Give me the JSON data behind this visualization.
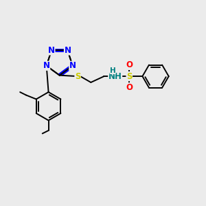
{
  "background_color": "#ebebeb",
  "figure_size": [
    3.0,
    3.0
  ],
  "dpi": 100,
  "bond_color": "#000000",
  "N_color": "#0000ff",
  "S_color": "#cccc00",
  "O_color": "#ff0000",
  "NH_color": "#008080",
  "bond_lw": 1.4,
  "font_size": 8.5,
  "xlim": [
    0,
    10
  ],
  "ylim": [
    0,
    10
  ]
}
